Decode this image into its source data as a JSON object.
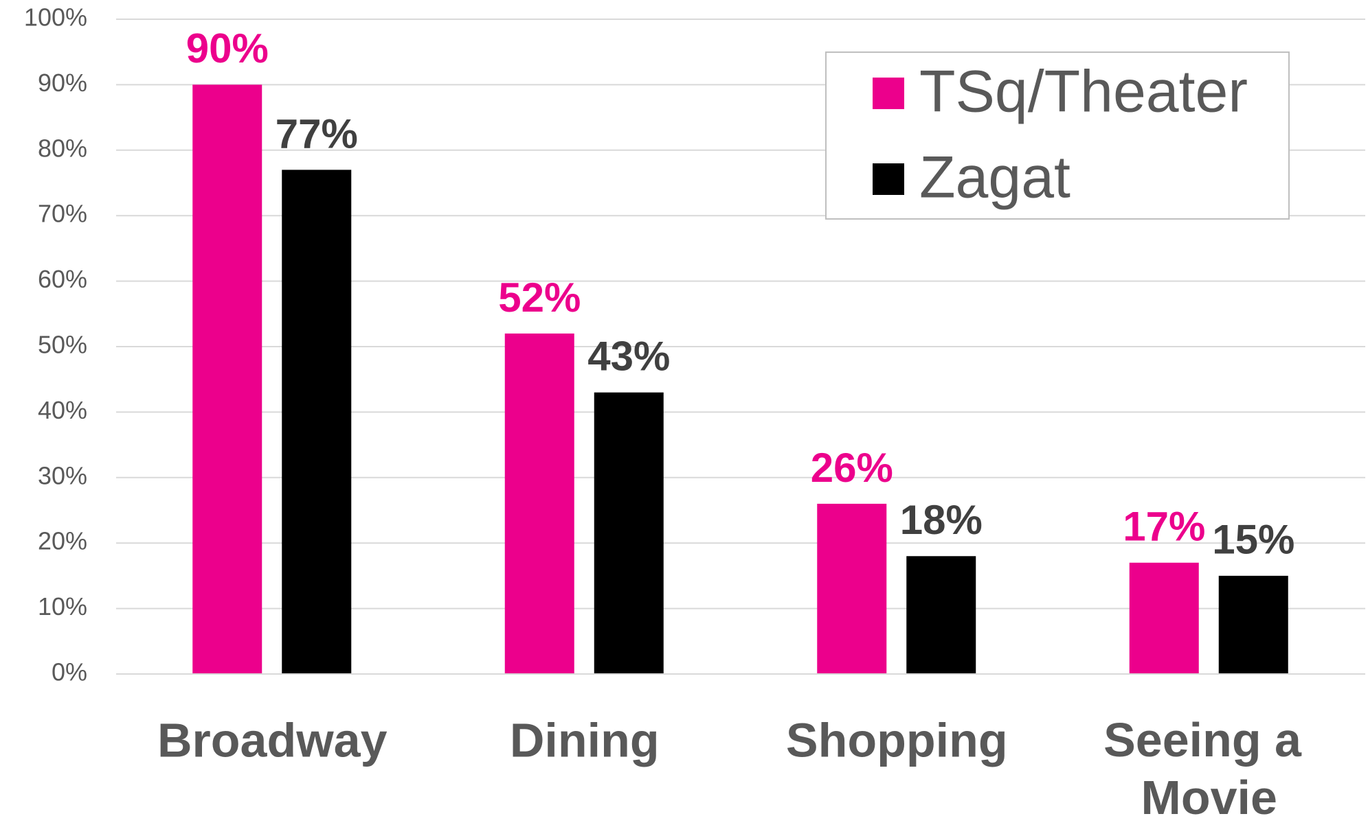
{
  "chart_data": {
    "type": "bar",
    "categories": [
      "Broadway",
      "Dining",
      "Shopping",
      "Seeing a Movie"
    ],
    "series": [
      {
        "name": "TSq/Theater",
        "color": "#ec008c",
        "values": [
          90,
          52,
          26,
          17
        ],
        "value_labels": [
          "90%",
          "52%",
          "26%",
          "17%"
        ]
      },
      {
        "name": "Zagat",
        "color": "#000000",
        "values": [
          77,
          43,
          18,
          15
        ],
        "value_labels": [
          "77%",
          "43%",
          "18%",
          "15%"
        ]
      }
    ],
    "ylim": [
      0,
      100
    ],
    "yticks": [
      {
        "value": 0,
        "label": "0%"
      },
      {
        "value": 10,
        "label": "10%"
      },
      {
        "value": 20,
        "label": "20%"
      },
      {
        "value": 30,
        "label": "30%"
      },
      {
        "value": 40,
        "label": "40%"
      },
      {
        "value": 50,
        "label": "50%"
      },
      {
        "value": 60,
        "label": "60%"
      },
      {
        "value": 70,
        "label": "70%"
      },
      {
        "value": 80,
        "label": "80%"
      },
      {
        "value": 90,
        "label": "90%"
      },
      {
        "value": 100,
        "label": "100%"
      }
    ],
    "grid": true,
    "legend": "upper right"
  }
}
